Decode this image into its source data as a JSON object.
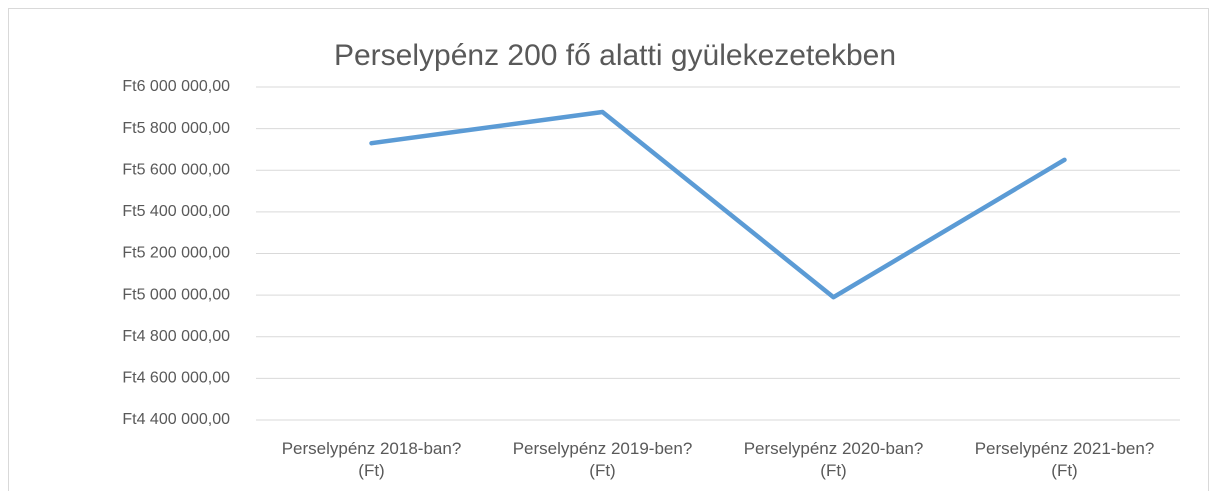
{
  "chart_data": {
    "type": "line",
    "title": "Perselypénz 200 fő alatti gyülekezetekben",
    "categories": [
      "Perselypénz 2018-ban? (Ft)",
      "Perselypénz 2019-ben? (Ft)",
      "Perselypénz 2020-ban? (Ft)",
      "Perselypénz 2021-ben? (Ft)"
    ],
    "series": [
      {
        "name": "Perselypénz",
        "color": "#5b9bd5",
        "values": [
          5730000,
          5880000,
          4990000,
          5650000
        ]
      }
    ],
    "ylim": [
      4400000,
      6000000
    ],
    "yticks": [
      {
        "value": 4400000,
        "label": "Ft4 400 000,00"
      },
      {
        "value": 4600000,
        "label": "Ft4 600 000,00"
      },
      {
        "value": 4800000,
        "label": "Ft4 800 000,00"
      },
      {
        "value": 5000000,
        "label": "Ft5 000 000,00"
      },
      {
        "value": 5200000,
        "label": "Ft5 200 000,00"
      },
      {
        "value": 5400000,
        "label": "Ft5 400 000,00"
      },
      {
        "value": 5600000,
        "label": "Ft5 600 000,00"
      },
      {
        "value": 5800000,
        "label": "Ft5 800 000,00"
      },
      {
        "value": 6000000,
        "label": "Ft6 000 000,00"
      }
    ],
    "grid": true
  }
}
